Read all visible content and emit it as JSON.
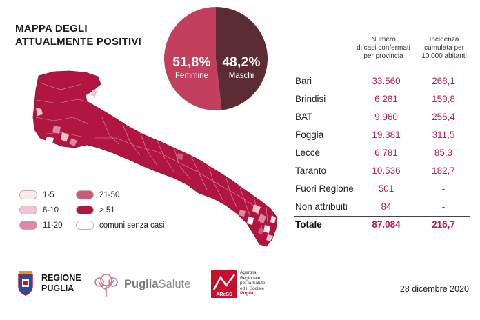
{
  "title": {
    "line1": "MAPPA DEGLI",
    "line2": "ATTUALMENTE POSITIVI"
  },
  "chart_data": [
    {
      "type": "pie",
      "slices": [
        {
          "label": "Femmine",
          "display": "51,8%",
          "value": 51.8,
          "color": "#c2405e"
        },
        {
          "label": "Maschi",
          "display": "48,2%",
          "value": 48.2,
          "color": "#5b2c33"
        }
      ]
    },
    {
      "type": "table",
      "columns": [
        "",
        "Numero di casi confermati per provincia",
        "Incidenza cumulata per 10.000 abitanti"
      ],
      "rows": [
        {
          "name": "Bari",
          "cases": "33.560",
          "incidence": "268,1"
        },
        {
          "name": "Brindisi",
          "cases": "6.281",
          "incidence": "159,8"
        },
        {
          "name": "BAT",
          "cases": "9.960",
          "incidence": "255,4"
        },
        {
          "name": "Foggia",
          "cases": "19.381",
          "incidence": "311,5"
        },
        {
          "name": "Lecce",
          "cases": "6.781",
          "incidence": "85,3"
        },
        {
          "name": "Taranto",
          "cases": "10.536",
          "incidence": "182,7"
        },
        {
          "name": "Fuori Regione",
          "cases": "501",
          "incidence": "-"
        },
        {
          "name": "Non attribuiti",
          "cases": "84",
          "incidence": "-"
        }
      ],
      "total": {
        "name": "Totale",
        "cases": "87.084",
        "incidence": "216,7"
      }
    }
  ],
  "table_header": {
    "cases_l1": "Numero",
    "cases_l2": "di casi confermati",
    "cases_l3": "per provincia",
    "inc_l1": "Incidenza",
    "inc_l2": "cumulata per",
    "inc_l3": "10.000 abitanti"
  },
  "legend": [
    {
      "label": "1-5",
      "color": "#fbe9ec"
    },
    {
      "label": "6-10",
      "color": "#f3c4cf"
    },
    {
      "label": "11-20",
      "color": "#dc8aa3"
    },
    {
      "label": "21-50",
      "color": "#c95a78"
    },
    {
      "label": "> 51",
      "color": "#b0163f"
    },
    {
      "label": "comuni senza casi",
      "color": "#ffffff"
    }
  ],
  "map": {
    "main_color": "#b0163f",
    "border_color": "#ffffff"
  },
  "footer": {
    "regione_l1": "REGIONE",
    "regione_l2": "PUGLIA",
    "puglia_bold": "Puglia",
    "puglia_light": "Salute",
    "aress_mark": "AReSS",
    "aress_l1": "Agenzia",
    "aress_l2": "Regionale",
    "aress_l3": "per la Salute",
    "aress_l4": "ed il Sociale",
    "aress_l5": "Puglia",
    "date": "28 dicembre 2020"
  }
}
